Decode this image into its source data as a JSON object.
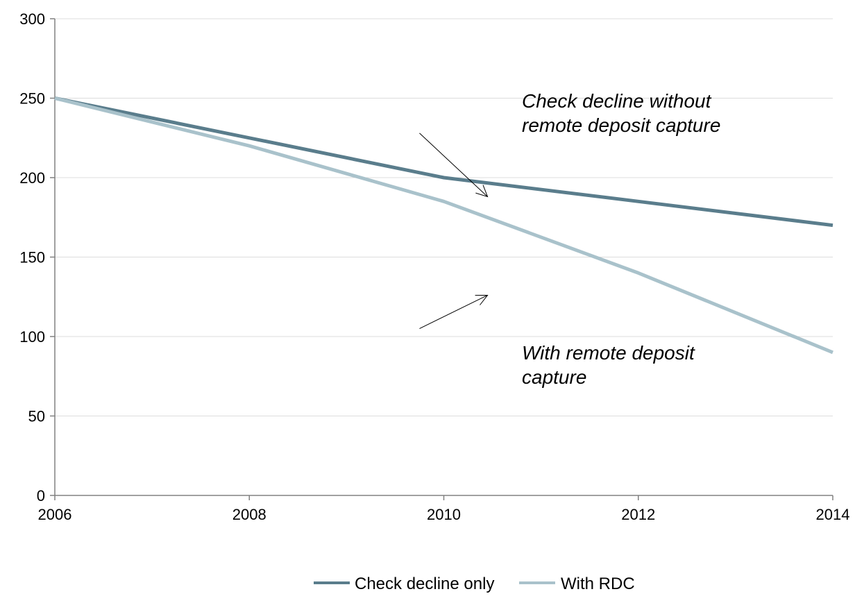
{
  "chart_data": {
    "type": "line",
    "title": "",
    "xlabel": "",
    "ylabel": "",
    "x": [
      2006,
      2008,
      2010,
      2012,
      2014
    ],
    "xlim": [
      2006,
      2014
    ],
    "ylim": [
      0,
      300
    ],
    "x_ticks": [
      "2006",
      "2008",
      "2010",
      "2012",
      "2014"
    ],
    "y_ticks": [
      "0",
      "50",
      "100",
      "150",
      "200",
      "250",
      "300"
    ],
    "grid": "horizontal",
    "legend_position": "bottom",
    "series": [
      {
        "name": "Check decline only",
        "color": "#5a7d8c",
        "points": [
          [
            2006,
            250
          ],
          [
            2008,
            225
          ],
          [
            2010,
            200
          ],
          [
            2012,
            185
          ],
          [
            2014,
            170
          ]
        ]
      },
      {
        "name": "With RDC",
        "color": "#a9c2cb",
        "points": [
          [
            2006,
            250
          ],
          [
            2008,
            220
          ],
          [
            2010,
            185
          ],
          [
            2012,
            140
          ],
          [
            2014,
            90
          ]
        ]
      }
    ],
    "annotations": [
      {
        "lines": [
          "Check decline without",
          "remote deposit capture"
        ],
        "arrow_from": [
          2009.75,
          228
        ],
        "arrow_to": [
          2010.45,
          188
        ]
      },
      {
        "lines": [
          "With remote deposit",
          "capture"
        ],
        "arrow_from": [
          2009.75,
          105
        ],
        "arrow_to": [
          2010.45,
          126
        ]
      }
    ]
  }
}
